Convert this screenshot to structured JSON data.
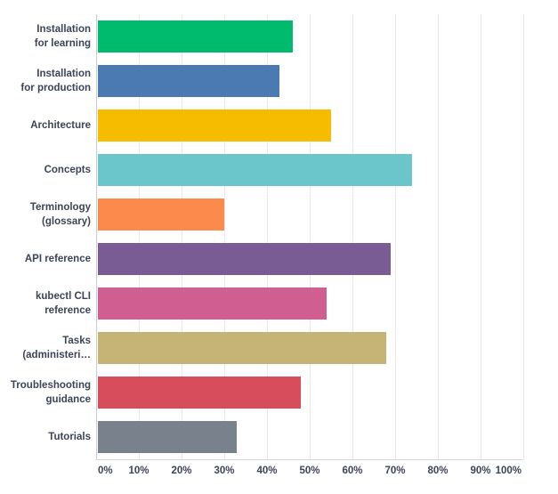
{
  "chart_data": {
    "type": "bar",
    "orientation": "horizontal",
    "title": "",
    "xlabel": "",
    "ylabel": "",
    "xlim": [
      0,
      100
    ],
    "grid": "vertical",
    "legend": "none",
    "x_tick_labels": [
      "0%",
      "10%",
      "20%",
      "30%",
      "40%",
      "50%",
      "60%",
      "70%",
      "80%",
      "90%",
      "100%"
    ],
    "categories": [
      "Installation for learning",
      "Installation for production",
      "Architecture",
      "Concepts",
      "Terminology (glossary)",
      "API reference",
      "kubectl CLI reference",
      "Tasks (administeri…",
      "Troubleshooting guidance",
      "Tutorials"
    ],
    "category_display_lines": [
      [
        "Installation",
        "for learning"
      ],
      [
        "Installation",
        "for production"
      ],
      [
        "Architecture"
      ],
      [
        "Concepts"
      ],
      [
        "Terminology",
        "(glossary)"
      ],
      [
        "API reference"
      ],
      [
        "kubectl CLI",
        "reference"
      ],
      [
        "Tasks",
        "(administeri…"
      ],
      [
        "Troubleshooting",
        "guidance"
      ],
      [
        "Tutorials"
      ]
    ],
    "values": [
      46,
      43,
      55,
      74,
      30,
      69,
      54,
      68,
      48,
      33
    ],
    "value_unit": "%",
    "bar_colors": [
      "#00bb6e",
      "#4b79b2",
      "#f6bc00",
      "#6bc6cb",
      "#fc8a4c",
      "#795c93",
      "#d05e90",
      "#c6b477",
      "#d84d5b",
      "#79828c"
    ]
  },
  "colors": {
    "background": "#ffffff",
    "gridline": "#e9e9ea",
    "axis_line": "#c9ccd1",
    "bottom_axis_line": "#d6d8db",
    "label_text": "#3c4556"
  }
}
